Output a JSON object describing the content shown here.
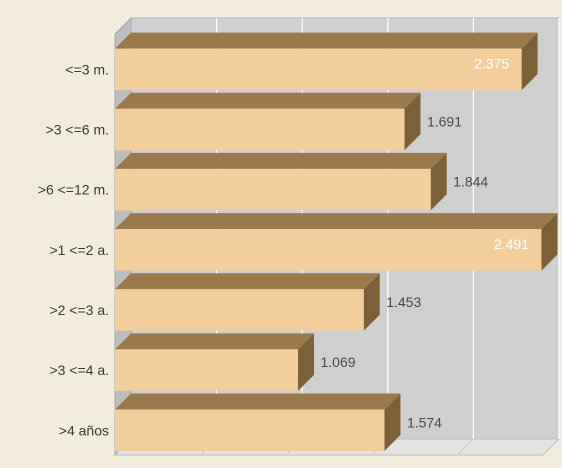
{
  "chart_data": {
    "type": "bar",
    "orientation": "horizontal",
    "style": "3d",
    "categories": [
      ">4 años",
      ">3 <=4 a.",
      ">2 <=3 a.",
      ">1 <=2 a.",
      ">6 <=12 m.",
      ">3 <=6 m.",
      "<=3 m."
    ],
    "values": [
      1574,
      1069,
      1453,
      2491,
      1844,
      1691,
      2375
    ],
    "value_labels": [
      "1.574",
      "1.069",
      "1.453",
      "2.491",
      "1.844",
      "1.691",
      "2.375"
    ],
    "label_inside": [
      false,
      false,
      false,
      true,
      false,
      false,
      true
    ],
    "xlim": [
      0,
      2500
    ],
    "grid": true,
    "legend": "none",
    "title": "",
    "xlabel": "",
    "ylabel": "",
    "colors": {
      "background": "#f1ecde",
      "wall": "#cfcfcf",
      "floor": "#e3e3e3",
      "grid": "#ffffff",
      "bar_front": "#f1ce9c",
      "bar_top": "#9a7a4c",
      "bar_side": "#7c6138",
      "label_outside": "#4a4a4a",
      "label_inside": "#ffffff"
    }
  }
}
